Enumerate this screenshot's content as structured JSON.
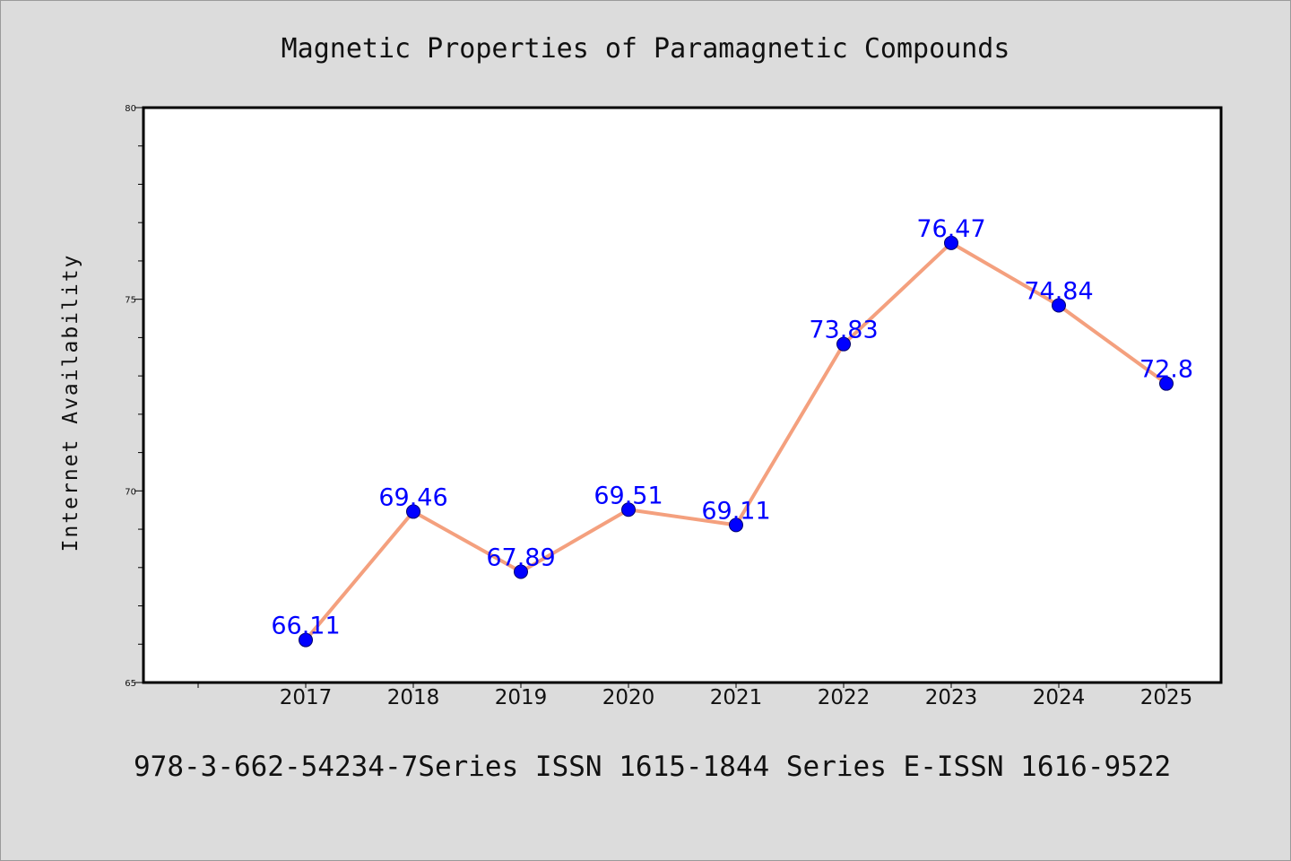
{
  "chart_data": {
    "type": "line",
    "title": "Magnetic Properties of Paramagnetic Compounds",
    "ylabel": "Internet Availability",
    "xlabel": "",
    "categories": [
      "2017",
      "2018",
      "2019",
      "2020",
      "2021",
      "2022",
      "2023",
      "2024",
      "2025"
    ],
    "series": [
      {
        "values": [
          66.11,
          69.46,
          67.89,
          69.51,
          69.11,
          73.83,
          76.47,
          74.84,
          72.8
        ]
      }
    ],
    "data_labels": [
      "66.11",
      "69.46",
      "67.89",
      "69.51",
      "69.11",
      "73.83",
      "76.47",
      "74.84",
      "72.8"
    ],
    "ylim": [
      65,
      80
    ],
    "yticks": [
      65,
      70,
      75,
      80
    ],
    "ytick_labels": [
      "65",
      "70",
      "75",
      "80"
    ],
    "grid": false,
    "line_color": "#f4a07e",
    "marker_color": "#0000ff",
    "label_color": "#0000ff"
  },
  "footer": {
    "text": "978-3-662-54234-7Series ISSN 1615-1844 Series E-ISSN 1616-9522"
  }
}
